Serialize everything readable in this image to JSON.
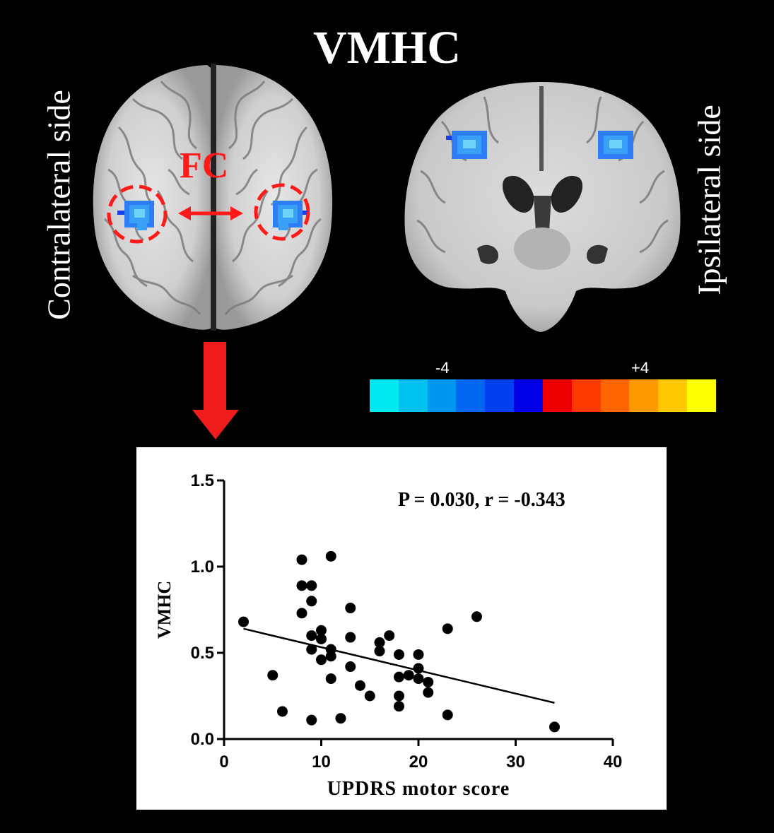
{
  "figure": {
    "title": "VMHC",
    "left_label": "Contralateral side",
    "right_label": "Ipsilateral side",
    "fc_label": "FC"
  },
  "colors": {
    "background": "#000000",
    "panel": "#ffffff",
    "highlight_red": "#ff1a1a",
    "activation_blue": "#2f7df5"
  },
  "colorbar": {
    "tick_neg": "-4",
    "tick_pos": "+4",
    "colors": [
      "#00e8f0",
      "#00c2f0",
      "#0096f0",
      "#0066f0",
      "#0040f0",
      "#0000e8",
      "#ee0000",
      "#ff3a00",
      "#ff6600",
      "#ff9900",
      "#ffc800",
      "#ffff00"
    ]
  },
  "chart_data": {
    "type": "scatter",
    "title": "",
    "annotation": "P = 0.030, r = -0.343",
    "xlabel": "UPDRS motor score",
    "ylabel": "VMHC",
    "xlim": [
      0,
      40
    ],
    "ylim": [
      0,
      1.5
    ],
    "xticks": [
      "0",
      "10",
      "20",
      "30",
      "40"
    ],
    "yticks": [
      "0.0",
      "0.5",
      "1.0",
      "1.5"
    ],
    "grid": false,
    "points": [
      [
        2,
        0.68
      ],
      [
        5,
        0.37
      ],
      [
        6,
        0.16
      ],
      [
        8,
        1.04
      ],
      [
        8,
        0.89
      ],
      [
        8,
        0.73
      ],
      [
        9,
        0.89
      ],
      [
        9,
        0.8
      ],
      [
        9,
        0.6
      ],
      [
        9,
        0.52
      ],
      [
        9,
        0.11
      ],
      [
        10,
        0.63
      ],
      [
        10,
        0.58
      ],
      [
        10,
        0.46
      ],
      [
        11,
        1.06
      ],
      [
        11,
        0.52
      ],
      [
        11,
        0.48
      ],
      [
        11,
        0.35
      ],
      [
        12,
        0.12
      ],
      [
        13,
        0.76
      ],
      [
        13,
        0.59
      ],
      [
        13,
        0.42
      ],
      [
        14,
        0.31
      ],
      [
        15,
        0.25
      ],
      [
        16,
        0.56
      ],
      [
        16,
        0.51
      ],
      [
        17,
        0.6
      ],
      [
        18,
        0.49
      ],
      [
        18,
        0.36
      ],
      [
        18,
        0.25
      ],
      [
        18,
        0.19
      ],
      [
        19,
        0.37
      ],
      [
        20,
        0.49
      ],
      [
        20,
        0.41
      ],
      [
        20,
        0.35
      ],
      [
        21,
        0.33
      ],
      [
        21,
        0.27
      ],
      [
        23,
        0.64
      ],
      [
        23,
        0.14
      ],
      [
        26,
        0.71
      ],
      [
        34,
        0.07
      ]
    ],
    "fit_line": {
      "x": [
        2,
        34
      ],
      "y": [
        0.64,
        0.21
      ]
    }
  }
}
